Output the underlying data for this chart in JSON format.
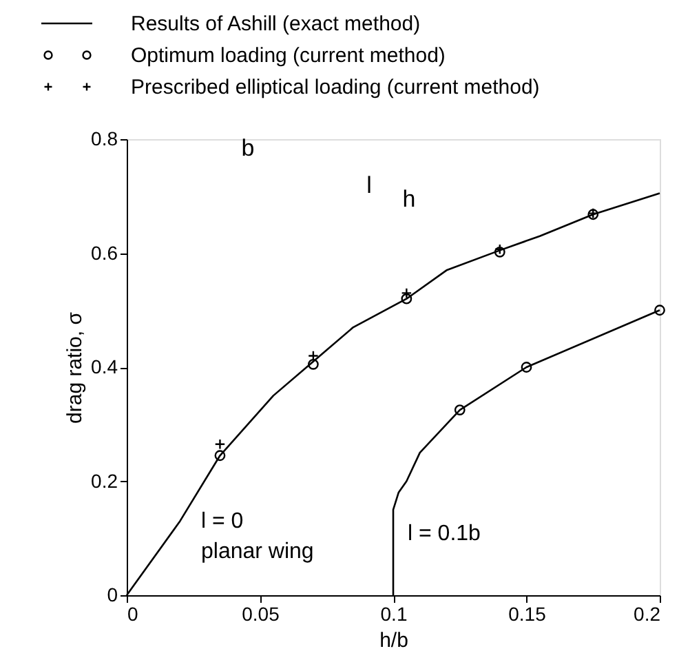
{
  "chart_data": {
    "type": "line",
    "xlabel": "h/b",
    "ylabel": "drag ratio, σ",
    "xlim": [
      0,
      0.2
    ],
    "ylim": [
      0,
      0.8
    ],
    "xticks": [
      0,
      0.05,
      0.1,
      0.15,
      0.2
    ],
    "yticks": [
      0,
      0.2,
      0.4,
      0.6,
      0.8
    ],
    "grid": false,
    "legend": "top",
    "series": [
      {
        "name": "Results of Ashill (exact method)",
        "color": "#000000",
        "marker": "none",
        "line_style": "solid",
        "x": [
          0,
          0.02,
          0.035,
          0.055,
          0.07,
          0.085,
          0.105,
          0.12,
          0.14,
          0.155,
          0.175,
          0.2
        ],
        "values": [
          0,
          0.13,
          0.245,
          0.35,
          0.41,
          0.47,
          0.52,
          0.57,
          0.605,
          0.63,
          0.668,
          0.705
        ]
      },
      {
        "color": "#000000",
        "marker": "none",
        "line_style": "solid",
        "x": [
          0.1,
          0.1,
          0.102,
          0.105,
          0.11,
          0.125,
          0.15,
          0.2
        ],
        "values": [
          0,
          0.15,
          0.18,
          0.2,
          0.25,
          0.325,
          0.4,
          0.5
        ]
      },
      {
        "name": "Optimum loading (current method)",
        "type": "scatter",
        "color": "#000000",
        "marker": "circle",
        "x": [
          0.035,
          0.07,
          0.105,
          0.14,
          0.175,
          0.125,
          0.15,
          0.2
        ],
        "values": [
          0.245,
          0.405,
          0.52,
          0.602,
          0.668,
          0.325,
          0.4,
          0.5
        ]
      },
      {
        "name": "Prescribed elliptical loading (current method)",
        "type": "scatter",
        "color": "#000000",
        "marker": "cross",
        "x": [
          0.035,
          0.07,
          0.105,
          0.14,
          0.175
        ],
        "values": [
          0.265,
          0.42,
          0.53,
          0.607,
          0.67
        ]
      }
    ],
    "annotations": [
      "l = 0\nplanar wing",
      "l = 0.1b",
      "b",
      "l",
      "h"
    ]
  }
}
